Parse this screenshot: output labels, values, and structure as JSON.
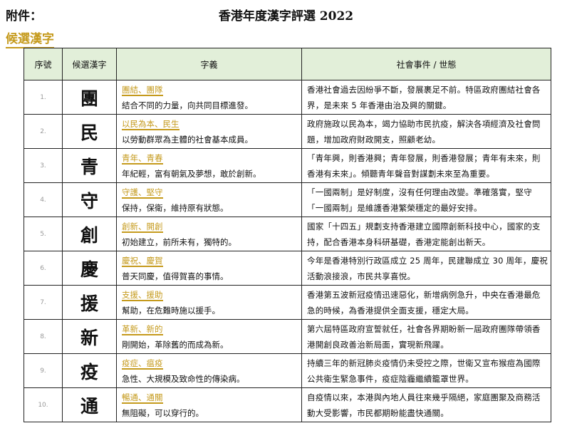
{
  "header": {
    "annex_label": "附件：",
    "title": "香港年度漢字評選 2022",
    "section_title": "候選漢字"
  },
  "colors": {
    "accent": "#c59a1c",
    "header_bg": "#e2efd9"
  },
  "table": {
    "columns": [
      "序號",
      "候選漢字",
      "字義",
      "社會事件 / 世態"
    ],
    "rows": [
      {
        "num": "1.",
        "char": "團",
        "keywords": "團結、團隊",
        "meaning": "結合不同的力量，向共同目標進發。",
        "event": "香港社會過去因紛爭不斷，發展裹足不前。特區政府團結社會各界，是未來 5 年香港由治及興的關鍵。"
      },
      {
        "num": "2.",
        "char": "民",
        "keywords": "以民為本、民生",
        "meaning": "以勞動群眾為主體的社會基本成員。",
        "event": "政府施政以民為本，竭力協助市民抗疫，解決各項經濟及社會問題，增加政府財政開支，照顧老幼。"
      },
      {
        "num": "3.",
        "char": "青",
        "keywords": "青年、青春",
        "meaning": "年紀輕，富有朝氣及夢想，敢於創新。",
        "event": "「青年興，則香港興；青年發展，則香港發展；青年有未來，則香港有未來」。傾聽青年聲音對謀劃未來至為重要。"
      },
      {
        "num": "4.",
        "char": "守",
        "keywords": "守護、堅守",
        "meaning": "保持，保衛，維持原有狀態。",
        "event": "「一國兩制」是好制度，沒有任何理由改變。準確落實，堅守「一國兩制」是維護香港繁榮穩定的最好安排。"
      },
      {
        "num": "5.",
        "char": "創",
        "keywords": "創新、開創",
        "meaning": "初始建立，前所未有，獨特的。",
        "event": "國家「十四五」規劃支持香港建立國際創新科技中心，國家的支持，配合香港本身科研基礎，香港定能創出新天。"
      },
      {
        "num": "6.",
        "char": "慶",
        "keywords": "慶祝、慶賀",
        "meaning": "普天同慶，值得賀喜的事情。",
        "event": "今年是香港特別行政區成立 25 周年，民建聯成立 30 周年，慶祝活動浪接浪，市民共享喜悅。"
      },
      {
        "num": "7.",
        "char": "援",
        "keywords": "支援、援助",
        "meaning": "幫助，在危難時施以援手。",
        "event": "香港第五波新冠疫情迅速惡化，新增病例急升，中央在香港最危急的時候，為香港提供全面支援，穩定大局。"
      },
      {
        "num": "8.",
        "char": "新",
        "keywords": "革新、新的",
        "meaning": "剛開始，革除舊的而成為新。",
        "event": "第六屆特區政府宣誓就任，社會各界期盼新一屆政府團隊帶領香港開創良政善治新局面，實現新飛躍。"
      },
      {
        "num": "9.",
        "char": "疫",
        "keywords": "疫症、瘟疫",
        "meaning": "急性、大規模及致命性的傳染病。",
        "event": "持續三年的新冠肺炎疫情仍未受控之際，世衛又宣布猴痘為國際公共衛生緊急事件，疫症陰霾繼續籠罩世界。"
      },
      {
        "num": "10.",
        "char": "通",
        "keywords": "暢通、通關",
        "meaning": "無阻礙，可以穿行的。",
        "event": "自疫情以來，本港與內地人員往來幾乎隔絕，家庭團聚及商務活動大受影響，市民都期盼能盡快通關。"
      }
    ]
  }
}
